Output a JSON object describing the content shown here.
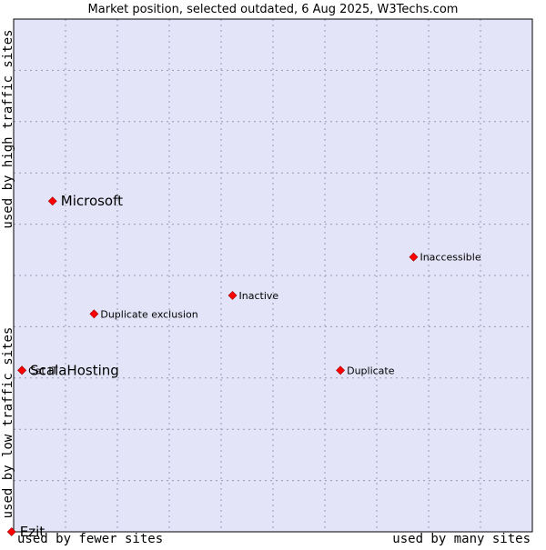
{
  "chart_data": {
    "type": "scatter",
    "title": "Market position, selected outdated, 6 Aug 2025, W3Techs.com",
    "axis_labels": {
      "x_low": "used by fewer sites",
      "x_high": "used by many sites",
      "y_high": "used by high traffic sites",
      "y_low": "used by low traffic sites"
    },
    "xlim": [
      0,
      1
    ],
    "ylim": [
      0,
      1
    ],
    "grid": true,
    "colors": {
      "background": "#e4e4f8",
      "marker": "#ff0000",
      "marker_outline": "#990000",
      "grid": "#9898b0",
      "frame": "#000000"
    },
    "points": [
      {
        "label": "Microsoft",
        "x": 0.075,
        "y": 0.645,
        "size": "large"
      },
      {
        "label": "Inaccessible",
        "x": 0.771,
        "y": 0.536,
        "size": "small"
      },
      {
        "label": "Inactive",
        "x": 0.422,
        "y": 0.461,
        "size": "small"
      },
      {
        "label": "Duplicate exclusion",
        "x": 0.155,
        "y": 0.425,
        "size": "small"
      },
      {
        "label": "ScalaHosting",
        "x": 0.016,
        "y": 0.315,
        "size": "large"
      },
      {
        "label": "Cat IT",
        "x": 0.016,
        "y": 0.315,
        "size": "small"
      },
      {
        "label": "Duplicate",
        "x": 0.63,
        "y": 0.315,
        "size": "small"
      },
      {
        "label": "Ezit",
        "x": -0.004,
        "y": 0.0,
        "size": "large"
      }
    ]
  }
}
